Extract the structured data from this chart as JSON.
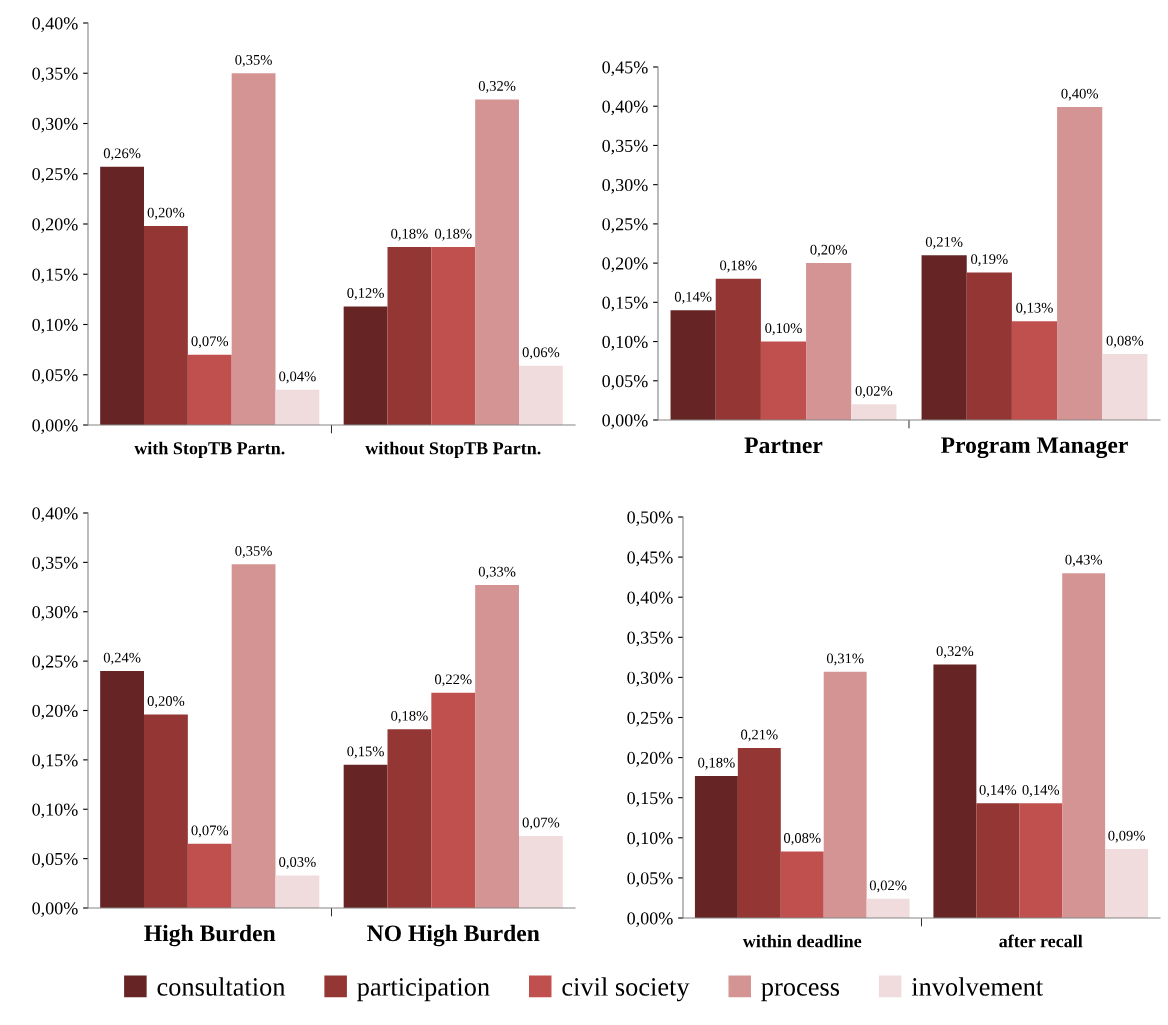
{
  "chart_data": [
    {
      "type": "bar",
      "categories": [
        "with StopTB Partn.",
        "without StopTB Partn."
      ],
      "ylim": [
        0,
        0.4
      ],
      "yticks": [
        {
          "value": 0,
          "label": "0,00%"
        },
        {
          "value": 0.05,
          "label": "0,05%"
        },
        {
          "value": 0.1,
          "label": "0,10%"
        },
        {
          "value": 0.15,
          "label": "0,15%"
        },
        {
          "value": 0.2,
          "label": "0,20%"
        },
        {
          "value": 0.25,
          "label": "0,25%"
        },
        {
          "value": 0.3,
          "label": "0,30%"
        },
        {
          "value": 0.35,
          "label": "0,35%"
        },
        {
          "value": 0.4,
          "label": "0,40%"
        }
      ],
      "grid": false,
      "legend": "bottom",
      "series": [
        {
          "name": "consultation",
          "color": "#662424",
          "values": [
            0.257,
            0.118
          ],
          "value_labels": [
            "0,26%",
            "0,12%"
          ]
        },
        {
          "name": "participation",
          "color": "#933634",
          "values": [
            0.198,
            0.177
          ],
          "value_labels": [
            "0,20%",
            "0,18%"
          ]
        },
        {
          "name": "civil society",
          "color": "#c0504d",
          "values": [
            0.07,
            0.177
          ],
          "value_labels": [
            "0,07%",
            "0,18%"
          ]
        },
        {
          "name": "process",
          "color": "#d49494",
          "values": [
            0.35,
            0.324
          ],
          "value_labels": [
            "0,35%",
            "0,32%"
          ]
        },
        {
          "name": "involvement",
          "color": "#f0dcdc",
          "values": [
            0.035,
            0.059
          ],
          "value_labels": [
            "0,04%",
            "0,06%"
          ]
        }
      ]
    },
    {
      "type": "bar",
      "categories": [
        "Partner",
        "Program Manager"
      ],
      "ylim": [
        0,
        0.45
      ],
      "yticks": [
        {
          "value": 0,
          "label": "0,00%"
        },
        {
          "value": 0.05,
          "label": "0,05%"
        },
        {
          "value": 0.1,
          "label": "0,10%"
        },
        {
          "value": 0.15,
          "label": "0,15%"
        },
        {
          "value": 0.2,
          "label": "0,20%"
        },
        {
          "value": 0.25,
          "label": "0,25%"
        },
        {
          "value": 0.3,
          "label": "0,30%"
        },
        {
          "value": 0.35,
          "label": "0,35%"
        },
        {
          "value": 0.4,
          "label": "0,40%"
        },
        {
          "value": 0.45,
          "label": "0,45%"
        }
      ],
      "grid": false,
      "legend": false,
      "series": [
        {
          "color": "#662424",
          "values": [
            0.14,
            0.21
          ],
          "value_labels": [
            "0,14%",
            "0,21%"
          ]
        },
        {
          "color": "#933634",
          "values": [
            0.18,
            0.188
          ],
          "value_labels": [
            "0,18%",
            "0,19%"
          ]
        },
        {
          "color": "#c0504d",
          "values": [
            0.1,
            0.126
          ],
          "value_labels": [
            "0,10%",
            "0,13%"
          ]
        },
        {
          "color": "#d49494",
          "values": [
            0.2,
            0.399
          ],
          "value_labels": [
            "0,20%",
            "0,40%"
          ]
        },
        {
          "color": "#f0dcdc",
          "values": [
            0.02,
            0.084
          ],
          "value_labels": [
            "0,02%",
            "0,08%"
          ]
        }
      ]
    },
    {
      "type": "bar",
      "categories": [
        "High Burden",
        "NO High Burden"
      ],
      "ylim": [
        0,
        0.4
      ],
      "yticks": [
        {
          "value": 0,
          "label": "0,00%"
        },
        {
          "value": 0.05,
          "label": "0,05%"
        },
        {
          "value": 0.1,
          "label": "0,10%"
        },
        {
          "value": 0.15,
          "label": "0,15%"
        },
        {
          "value": 0.2,
          "label": "0,20%"
        },
        {
          "value": 0.25,
          "label": "0,25%"
        },
        {
          "value": 0.3,
          "label": "0,30%"
        },
        {
          "value": 0.35,
          "label": "0,35%"
        },
        {
          "value": 0.4,
          "label": "0,40%"
        }
      ],
      "grid": false,
      "legend": false,
      "series": [
        {
          "color": "#662424",
          "values": [
            0.24,
            0.145
          ],
          "value_labels": [
            "0,24%",
            "0,15%"
          ]
        },
        {
          "color": "#933634",
          "values": [
            0.196,
            0.181
          ],
          "value_labels": [
            "0,20%",
            "0,18%"
          ]
        },
        {
          "color": "#c0504d",
          "values": [
            0.065,
            0.218
          ],
          "value_labels": [
            "0,07%",
            "0,22%"
          ]
        },
        {
          "color": "#d49494",
          "values": [
            0.348,
            0.327
          ],
          "value_labels": [
            "0,35%",
            "0,33%"
          ]
        },
        {
          "color": "#f0dcdc",
          "values": [
            0.033,
            0.073
          ],
          "value_labels": [
            "0,03%",
            "0,07%"
          ]
        }
      ]
    },
    {
      "type": "bar",
      "categories": [
        "within deadline",
        "after recall"
      ],
      "ylim": [
        0,
        0.5
      ],
      "yticks": [
        {
          "value": 0,
          "label": "0,00%"
        },
        {
          "value": 0.05,
          "label": "0,05%"
        },
        {
          "value": 0.1,
          "label": "0,10%"
        },
        {
          "value": 0.15,
          "label": "0,15%"
        },
        {
          "value": 0.2,
          "label": "0,20%"
        },
        {
          "value": 0.25,
          "label": "0,25%"
        },
        {
          "value": 0.3,
          "label": "0,30%"
        },
        {
          "value": 0.35,
          "label": "0,35%"
        },
        {
          "value": 0.4,
          "label": "0,40%"
        },
        {
          "value": 0.45,
          "label": "0,45%"
        },
        {
          "value": 0.5,
          "label": "0,50%"
        }
      ],
      "grid": false,
      "legend": false,
      "series": [
        {
          "color": "#662424",
          "values": [
            0.177,
            0.316
          ],
          "value_labels": [
            "0,18%",
            "0,32%"
          ]
        },
        {
          "color": "#933634",
          "values": [
            0.212,
            0.143
          ],
          "value_labels": [
            "0,21%",
            "0,14%"
          ]
        },
        {
          "color": "#c0504d",
          "values": [
            0.083,
            0.143
          ],
          "value_labels": [
            "0,08%",
            "0,14%"
          ]
        },
        {
          "color": "#d49494",
          "values": [
            0.307,
            0.43
          ],
          "value_labels": [
            "0,31%",
            "0,43%"
          ]
        },
        {
          "color": "#f0dcdc",
          "values": [
            0.024,
            0.086
          ],
          "value_labels": [
            "0,02%",
            "0,09%"
          ]
        }
      ]
    }
  ]
}
